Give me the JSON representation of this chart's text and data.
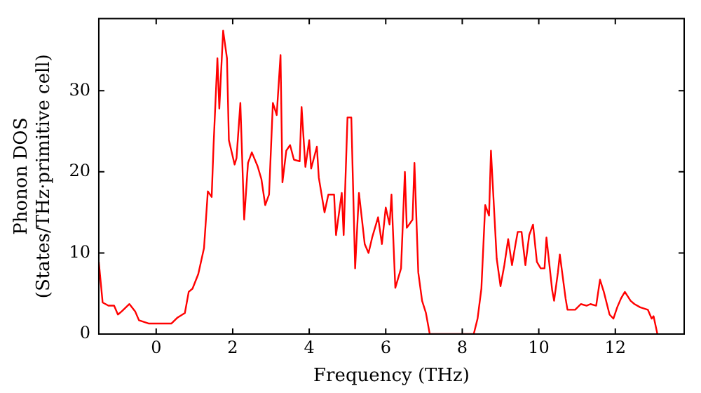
{
  "chart_data": {
    "type": "line",
    "xlabel": "Frequency (THz)",
    "ylabel": "Phonon DOS\n(States/THz·primitive cell)",
    "xlim": [
      -1.5,
      13.8
    ],
    "ylim": [
      0,
      38.9
    ],
    "xticks": [
      0,
      2,
      4,
      6,
      8,
      10,
      12
    ],
    "yticks": [
      0,
      10,
      20,
      30
    ],
    "grid": false,
    "legend": false,
    "marker": "none",
    "line_style": "solid",
    "series": [
      {
        "color": "#ff0000",
        "x": [
          -1.5,
          -1.4,
          -1.25,
          -1.1,
          -1.0,
          -0.9,
          -0.7,
          -0.55,
          -0.45,
          -0.2,
          0.2,
          0.4,
          0.55,
          0.75,
          0.85,
          0.95,
          1.1,
          1.25,
          1.35,
          1.45,
          1.5,
          1.6,
          1.65,
          1.75,
          1.85,
          1.9,
          2.05,
          2.1,
          2.2,
          2.3,
          2.4,
          2.5,
          2.65,
          2.75,
          2.85,
          2.95,
          3.05,
          3.15,
          3.25,
          3.3,
          3.4,
          3.5,
          3.6,
          3.75,
          3.8,
          3.9,
          4.0,
          4.05,
          4.2,
          4.25,
          4.4,
          4.5,
          4.65,
          4.7,
          4.85,
          4.9,
          5.0,
          5.1,
          5.2,
          5.3,
          5.45,
          5.55,
          5.65,
          5.8,
          5.9,
          6.0,
          6.1,
          6.15,
          6.25,
          6.4,
          6.5,
          6.55,
          6.7,
          6.75,
          6.85,
          6.95,
          7.05,
          7.15,
          8.3,
          8.4,
          8.5,
          8.6,
          8.7,
          8.75,
          8.9,
          9.0,
          9.1,
          9.2,
          9.3,
          9.4,
          9.45,
          9.55,
          9.65,
          9.75,
          9.85,
          9.95,
          10.05,
          10.15,
          10.2,
          10.35,
          10.4,
          10.5,
          10.55,
          10.7,
          10.75,
          10.85,
          10.95,
          11.1,
          11.25,
          11.35,
          11.5,
          11.6,
          11.7,
          11.85,
          11.95,
          12.05,
          12.15,
          12.25,
          12.4,
          12.5,
          12.65,
          12.85,
          12.95,
          13.0,
          13.1
        ],
        "values": [
          8.9,
          3.9,
          3.5,
          3.5,
          2.4,
          2.8,
          3.7,
          2.8,
          1.7,
          1.3,
          1.3,
          1.3,
          2.0,
          2.6,
          5.2,
          5.6,
          7.4,
          10.6,
          17.6,
          16.9,
          23.3,
          34,
          27.8,
          37.4,
          34,
          23.9,
          20.9,
          21.7,
          28.5,
          14.1,
          21.1,
          22.4,
          20.7,
          19.1,
          15.9,
          17.2,
          28.5,
          27.0,
          34.4,
          18.7,
          22.6,
          23.3,
          21.5,
          21.3,
          28.0,
          20.6,
          23.9,
          20.4,
          23.1,
          19.3,
          15.0,
          17.2,
          17.2,
          12.2,
          17.4,
          12.2,
          26.7,
          26.7,
          8.1,
          17.4,
          11.1,
          10.0,
          12.0,
          14.4,
          11.1,
          15.6,
          13.5,
          17.2,
          5.7,
          8.1,
          20.0,
          13.1,
          14.1,
          21.1,
          7.6,
          4.1,
          2.6,
          0,
          0,
          1.9,
          5.6,
          15.9,
          14.6,
          22.6,
          9.3,
          5.9,
          8.5,
          11.7,
          8.5,
          11.3,
          12.6,
          12.6,
          8.5,
          12.2,
          13.5,
          8.9,
          8.1,
          8.1,
          11.9,
          5.4,
          4.1,
          7.6,
          9.8,
          4.4,
          3.0,
          3.0,
          3.0,
          3.7,
          3.5,
          3.7,
          3.5,
          6.7,
          5.2,
          2.4,
          1.9,
          3.3,
          4.4,
          5.2,
          4.1,
          3.7,
          3.3,
          3.0,
          1.9,
          2.2,
          0
        ]
      }
    ]
  }
}
